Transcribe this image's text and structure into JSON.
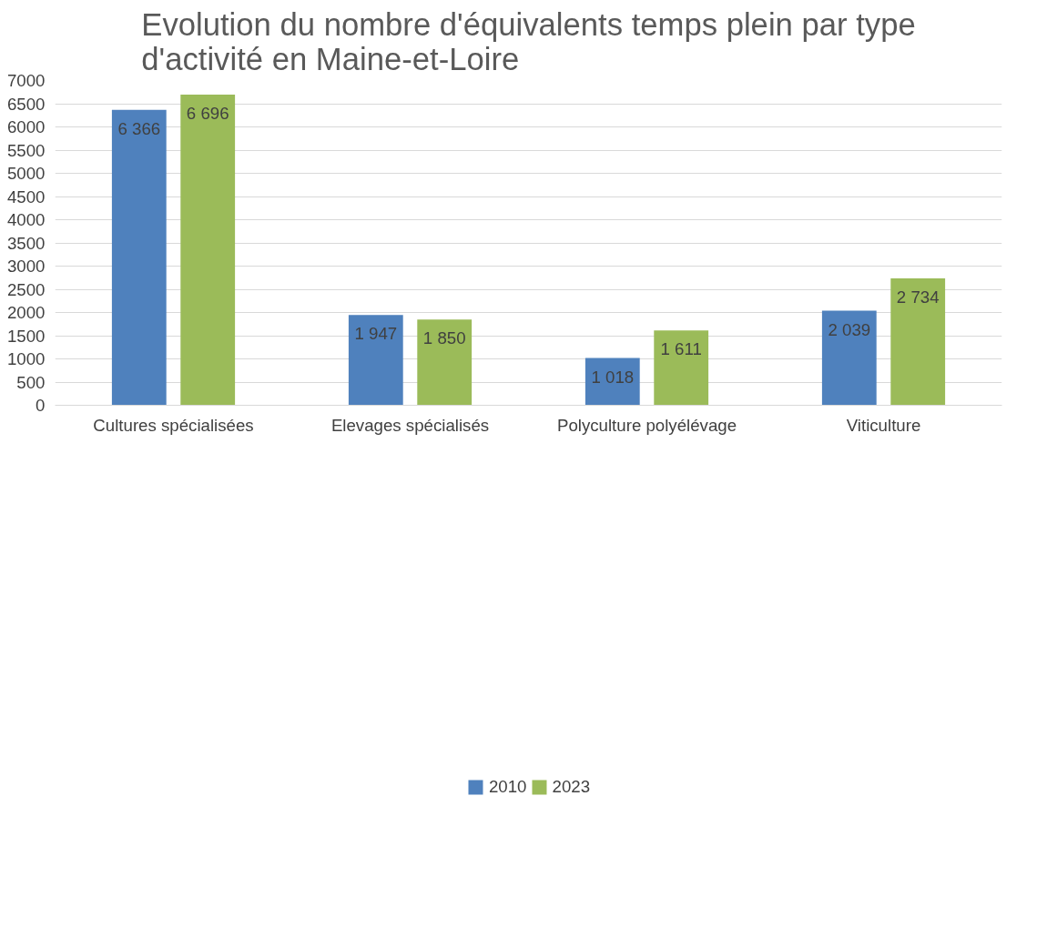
{
  "chart_data": {
    "type": "bar",
    "title": "Evolution du nombre d'équivalents temps plein par type d'activité en Maine-et-Loire",
    "categories": [
      "Cultures spécialisées",
      "Elevages spécialisés",
      "Polyculture polyélévage",
      "Viticulture"
    ],
    "series": [
      {
        "name": "2010",
        "color": "#4f81bd",
        "values": [
          6366,
          1947,
          1018,
          2039
        ],
        "value_labels": [
          "6 366",
          "1 947",
          "1 018",
          "2 039"
        ]
      },
      {
        "name": "2023",
        "color": "#9bbb59",
        "values": [
          6696,
          1850,
          1611,
          2734
        ],
        "value_labels": [
          "6 696",
          "1 850",
          "1 611",
          "2 734"
        ]
      }
    ],
    "ylim": [
      0,
      7000
    ],
    "yticks": [
      0,
      500,
      1000,
      1500,
      2000,
      2500,
      3000,
      3500,
      4000,
      4500,
      5000,
      5500,
      6000,
      6500,
      7000
    ],
    "grid": "y",
    "legend": "bottom"
  }
}
